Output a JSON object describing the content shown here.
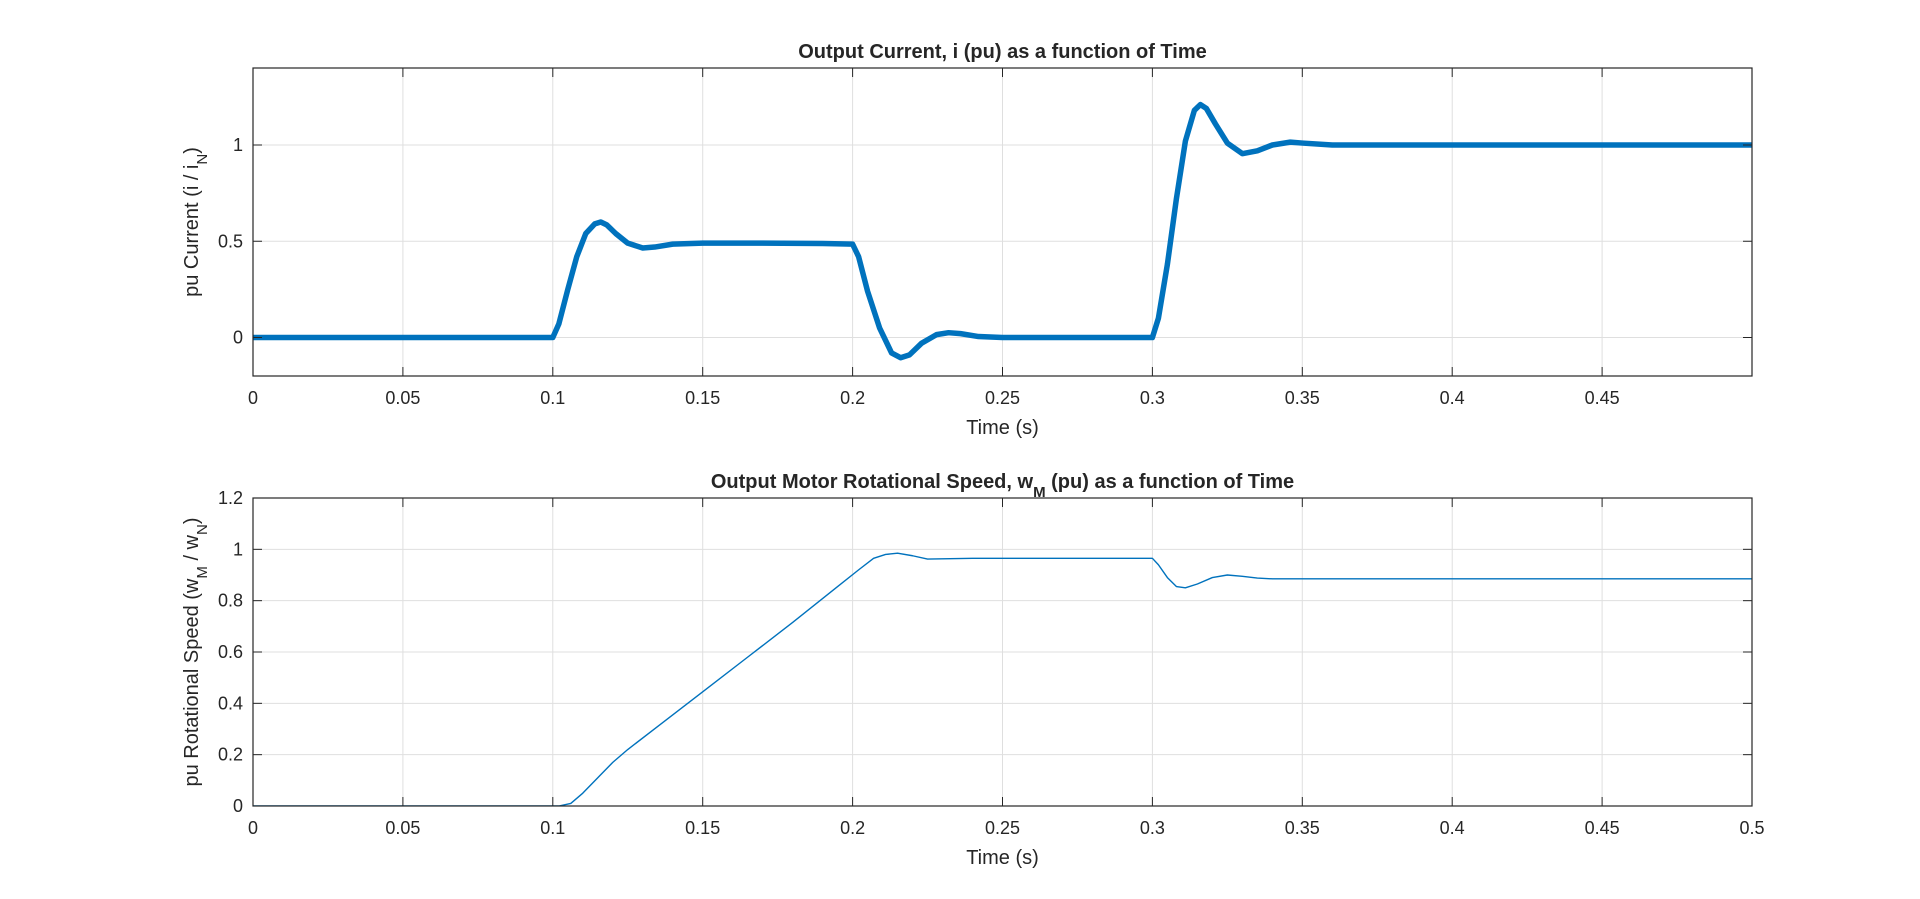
{
  "chart_data": [
    {
      "type": "line",
      "title_parts": [
        {
          "t": "Output Current, i (pu) as a function of Time"
        }
      ],
      "xlabel_parts": [
        {
          "t": "Time (s)"
        }
      ],
      "ylabel_parts": [
        {
          "t": "pu Current (i / i"
        },
        {
          "t": "N",
          "sub": true
        },
        {
          "t": ")"
        }
      ],
      "xlim": [
        0,
        0.5
      ],
      "ylim": [
        -0.2,
        1.4
      ],
      "xticks": [
        0,
        0.05,
        0.1,
        0.15,
        0.2,
        0.25,
        0.3,
        0.35,
        0.4,
        0.45
      ],
      "xtick_labels": [
        "0",
        "0.05",
        "0.1",
        "0.15",
        "0.2",
        "0.25",
        "0.3",
        "0.35",
        "0.4",
        "0.45"
      ],
      "yticks": [
        0,
        0.5,
        1
      ],
      "ytick_labels": [
        "0",
        "0.5",
        "1"
      ],
      "grid": true,
      "color": "#0072BD",
      "series": [
        {
          "x": [
            0,
            0.1,
            0.102,
            0.105,
            0.108,
            0.111,
            0.114,
            0.116,
            0.118,
            0.121,
            0.125,
            0.13,
            0.134,
            0.14,
            0.15,
            0.17,
            0.19,
            0.2,
            0.202,
            0.205,
            0.209,
            0.213,
            0.216,
            0.219,
            0.223,
            0.228,
            0.232,
            0.236,
            0.242,
            0.25,
            0.27,
            0.3,
            0.302,
            0.305,
            0.308,
            0.311,
            0.314,
            0.316,
            0.318,
            0.321,
            0.325,
            0.33,
            0.335,
            0.34,
            0.346,
            0.35,
            0.36,
            0.4,
            0.5
          ],
          "y": [
            0,
            0,
            0.07,
            0.25,
            0.42,
            0.54,
            0.59,
            0.6,
            0.585,
            0.54,
            0.49,
            0.465,
            0.47,
            0.485,
            0.49,
            0.49,
            0.488,
            0.485,
            0.42,
            0.24,
            0.05,
            -0.08,
            -0.105,
            -0.09,
            -0.03,
            0.015,
            0.025,
            0.02,
            0.005,
            0,
            0,
            0,
            0.1,
            0.38,
            0.72,
            1.02,
            1.18,
            1.21,
            1.19,
            1.11,
            1.01,
            0.955,
            0.97,
            1.0,
            1.015,
            1.01,
            1.0,
            1.0,
            1.0
          ]
        }
      ]
    },
    {
      "type": "line",
      "title_parts": [
        {
          "t": "Output Motor Rotational Speed, w"
        },
        {
          "t": "M",
          "sub": true
        },
        {
          "t": " (pu) as a function of Time"
        }
      ],
      "xlabel_parts": [
        {
          "t": "Time (s)"
        }
      ],
      "ylabel_parts": [
        {
          "t": "pu Rotational Speed (w"
        },
        {
          "t": "M",
          "sub": true
        },
        {
          "t": " / w"
        },
        {
          "t": "N",
          "sub": true
        },
        {
          "t": ")"
        }
      ],
      "xlim": [
        0,
        0.5
      ],
      "ylim": [
        0,
        1.2
      ],
      "xticks": [
        0,
        0.05,
        0.1,
        0.15,
        0.2,
        0.25,
        0.3,
        0.35,
        0.4,
        0.45,
        0.5
      ],
      "xtick_labels": [
        "0",
        "0.05",
        "0.1",
        "0.15",
        "0.2",
        "0.25",
        "0.3",
        "0.35",
        "0.4",
        "0.45",
        "0.5"
      ],
      "yticks": [
        0,
        0.2,
        0.4,
        0.6,
        0.8,
        1,
        1.2
      ],
      "ytick_labels": [
        "0",
        "0.2",
        "0.4",
        "0.6",
        "0.8",
        "1",
        "1.2"
      ],
      "grid": true,
      "color": "#0072BD",
      "series": [
        {
          "x": [
            0,
            0.102,
            0.106,
            0.11,
            0.115,
            0.12,
            0.125,
            0.135,
            0.15,
            0.165,
            0.18,
            0.195,
            0.202,
            0.207,
            0.211,
            0.215,
            0.22,
            0.225,
            0.24,
            0.3,
            0.302,
            0.305,
            0.308,
            0.311,
            0.315,
            0.32,
            0.325,
            0.33,
            0.335,
            0.34,
            0.35,
            0.5
          ],
          "y": [
            0,
            0,
            0.01,
            0.05,
            0.11,
            0.17,
            0.22,
            0.31,
            0.445,
            0.58,
            0.715,
            0.855,
            0.92,
            0.965,
            0.98,
            0.985,
            0.975,
            0.962,
            0.965,
            0.965,
            0.94,
            0.89,
            0.855,
            0.85,
            0.865,
            0.89,
            0.9,
            0.895,
            0.888,
            0.885,
            0.885,
            0.885
          ]
        }
      ]
    }
  ]
}
